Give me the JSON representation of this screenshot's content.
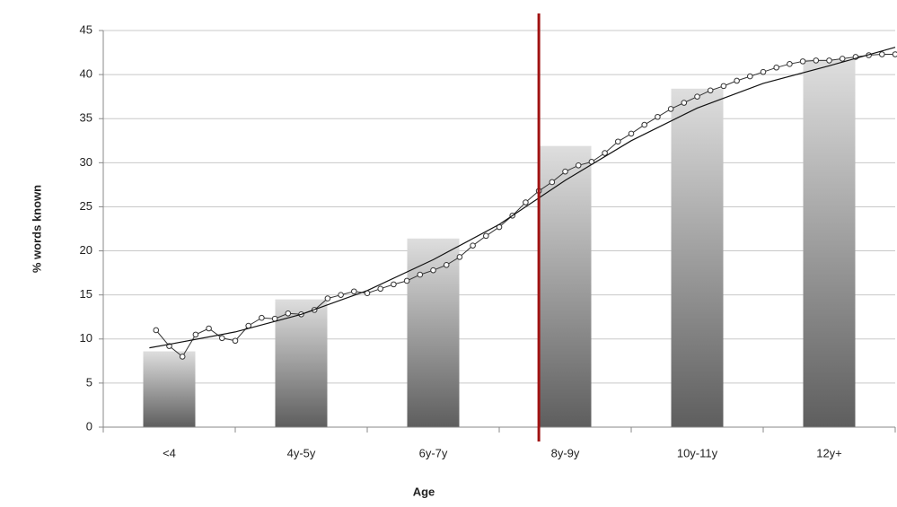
{
  "chart_data": {
    "type": "bar",
    "x_label": "Age",
    "y_label": "% words known",
    "categories": [
      "<4",
      "4y-5y",
      "6y-7y",
      "8y-9y",
      "10y-11y",
      "12y+"
    ],
    "values": [
      8.6,
      14.5,
      21.4,
      31.9,
      38.4,
      41.7
    ],
    "color": [
      "#dedede",
      "#5e5e5e"
    ],
    "xlim": [
      -0.5,
      5.5
    ],
    "ylim": [
      0,
      45
    ],
    "yticks": [
      0,
      5,
      10,
      15,
      20,
      25,
      30,
      35,
      40,
      45
    ],
    "grid": true,
    "series": [
      {
        "type": "line",
        "marker": true,
        "color": "#333333",
        "x": [
          -0.1,
          0.0,
          0.1,
          0.2,
          0.3,
          0.4,
          0.5,
          0.6,
          0.7,
          0.8,
          0.9,
          1.0,
          1.1,
          1.2,
          1.3,
          1.4,
          1.5,
          1.6,
          1.7,
          1.8,
          1.9,
          2.0,
          2.1,
          2.2,
          2.3,
          2.4,
          2.5,
          2.6,
          2.7,
          2.8,
          2.9,
          3.0,
          3.1,
          3.2,
          3.3,
          3.4,
          3.5,
          3.6,
          3.7,
          3.8,
          3.9,
          4.0,
          4.1,
          4.2,
          4.3,
          4.4,
          4.5,
          4.6,
          4.7,
          4.8,
          4.9,
          5.0,
          5.1,
          5.2,
          5.3,
          5.4,
          5.5
        ],
        "values": [
          11.0,
          9.2,
          8.0,
          10.5,
          11.2,
          10.1,
          9.8,
          11.5,
          12.4,
          12.3,
          12.9,
          12.8,
          13.3,
          14.6,
          15.0,
          15.4,
          15.2,
          15.7,
          16.2,
          16.6,
          17.3,
          17.8,
          18.4,
          19.3,
          20.6,
          21.7,
          22.7,
          24.0,
          25.5,
          26.8,
          27.8,
          29.0,
          29.7,
          30.1,
          31.1,
          32.4,
          33.3,
          34.3,
          35.2,
          36.1,
          36.8,
          37.5,
          38.2,
          38.7,
          39.3,
          39.8,
          40.3,
          40.8,
          41.2,
          41.5,
          41.6,
          41.6,
          41.8,
          42.0,
          42.2,
          42.3,
          42.3
        ]
      },
      {
        "type": "line",
        "marker": false,
        "color": "#111111",
        "x": [
          -0.15,
          0.0,
          0.5,
          1.0,
          1.5,
          2.0,
          2.5,
          3.0,
          3.5,
          4.0,
          4.5,
          5.0,
          5.5
        ],
        "values": [
          9.0,
          9.4,
          10.8,
          12.8,
          15.5,
          19.0,
          23.0,
          28.0,
          32.5,
          36.2,
          39.0,
          41.0,
          43.1
        ]
      }
    ],
    "reference_line": {
      "x": 2.8,
      "color": "#a01212"
    }
  }
}
